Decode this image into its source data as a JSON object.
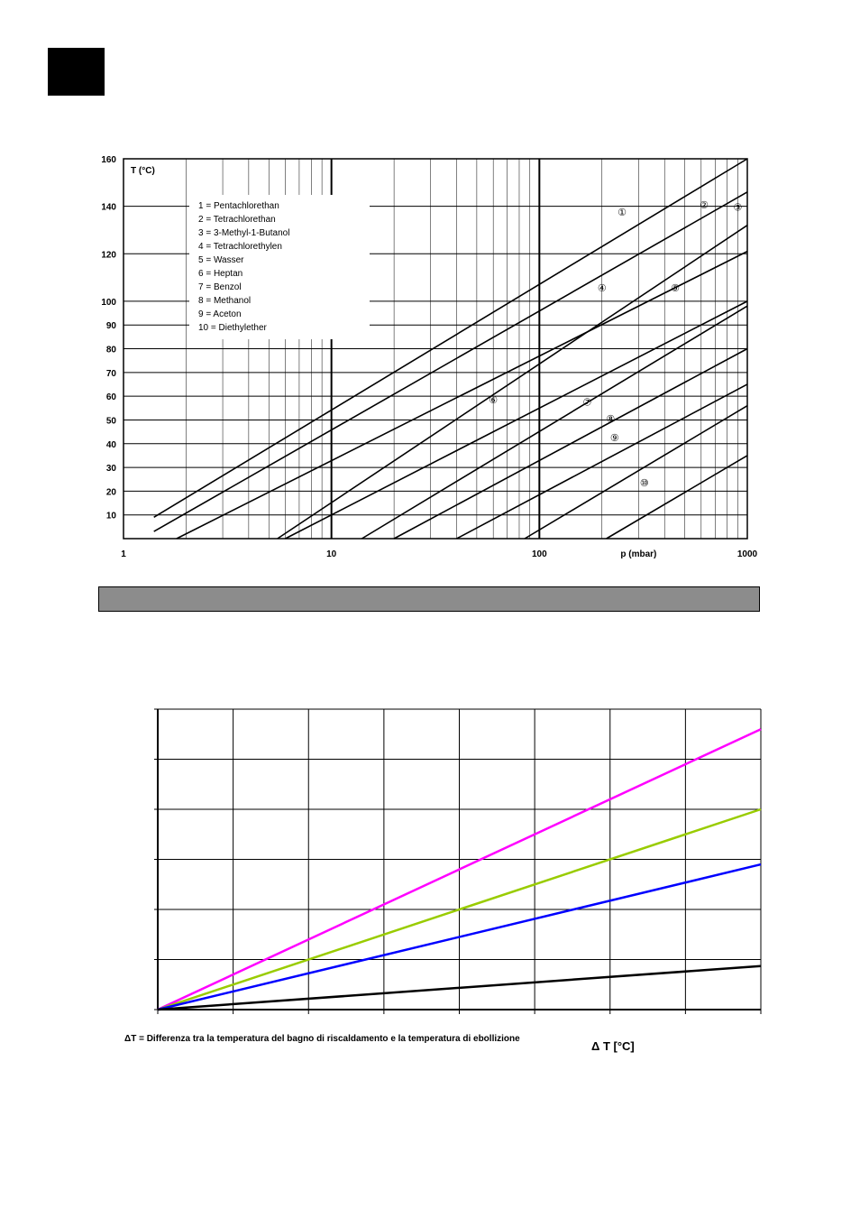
{
  "chart_data": [
    {
      "type": "line",
      "title": "",
      "ylabel": "T (°C)",
      "xlabel": "p (mbar)",
      "x_scale": "log",
      "xlim": [
        1,
        1000
      ],
      "ylim": [
        0,
        160
      ],
      "x_ticks": [
        "1",
        "10",
        "100",
        "1000"
      ],
      "y_ticks": [
        "160",
        "140",
        "120",
        "100",
        "90",
        "80",
        "70",
        "60",
        "50",
        "40",
        "30",
        "20",
        "10"
      ],
      "legend": [
        "1 = Pentachlorethan",
        "2 = Tetrachlorethan",
        "3 = 3-Methyl-1-Butanol",
        "4 = Tetrachlorethylen",
        "5 = Wasser",
        "6 = Heptan",
        "7 = Benzol",
        "8 = Methanol",
        "9 = Aceton",
        "10 = Diethylether"
      ],
      "series": [
        {
          "name": "1",
          "marker": "①",
          "x": [
            1.4,
            1000
          ],
          "y": [
            9,
            160
          ]
        },
        {
          "name": "2",
          "marker": "②",
          "x": [
            1.4,
            1000
          ],
          "y": [
            3,
            146
          ]
        },
        {
          "name": "3",
          "marker": "③",
          "x": [
            5.5,
            1000
          ],
          "y": [
            0,
            132
          ]
        },
        {
          "name": "4",
          "marker": "④",
          "x": [
            1.8,
            1000
          ],
          "y": [
            0,
            121
          ]
        },
        {
          "name": "5",
          "marker": "⑤",
          "x": [
            6,
            1000
          ],
          "y": [
            0,
            100
          ]
        },
        {
          "name": "6",
          "marker": "⑥",
          "x": [
            14,
            1000
          ],
          "y": [
            0,
            98
          ]
        },
        {
          "name": "7",
          "marker": "⑦",
          "x": [
            20,
            1000
          ],
          "y": [
            0,
            80
          ]
        },
        {
          "name": "8",
          "marker": "⑧",
          "x": [
            40,
            1000
          ],
          "y": [
            0,
            65
          ]
        },
        {
          "name": "9",
          "marker": "⑨",
          "x": [
            85,
            1000
          ],
          "y": [
            0,
            56
          ]
        },
        {
          "name": "10",
          "marker": "⑩",
          "x": [
            210,
            1000
          ],
          "y": [
            0,
            35
          ]
        }
      ]
    },
    {
      "type": "line",
      "title": "",
      "xlabel": "Δ T [°C]",
      "xlim": [
        0,
        8
      ],
      "ylim": [
        0,
        6
      ],
      "series": [
        {
          "color": "#ff00ff",
          "x": [
            0,
            8
          ],
          "y": [
            0,
            5.6
          ]
        },
        {
          "color": "#99cc00",
          "x": [
            0,
            8
          ],
          "y": [
            0,
            4.0
          ]
        },
        {
          "color": "#0000ff",
          "x": [
            0,
            8
          ],
          "y": [
            0,
            2.9
          ]
        },
        {
          "color": "#000000",
          "x": [
            0,
            8
          ],
          "y": [
            0,
            0.87
          ]
        }
      ]
    }
  ],
  "footnote": "ΔT = Differenza tra la temperatura del bagno di riscaldamento e la temperatura di ebollizione",
  "delta_axis_label": "Δ T [°C]"
}
